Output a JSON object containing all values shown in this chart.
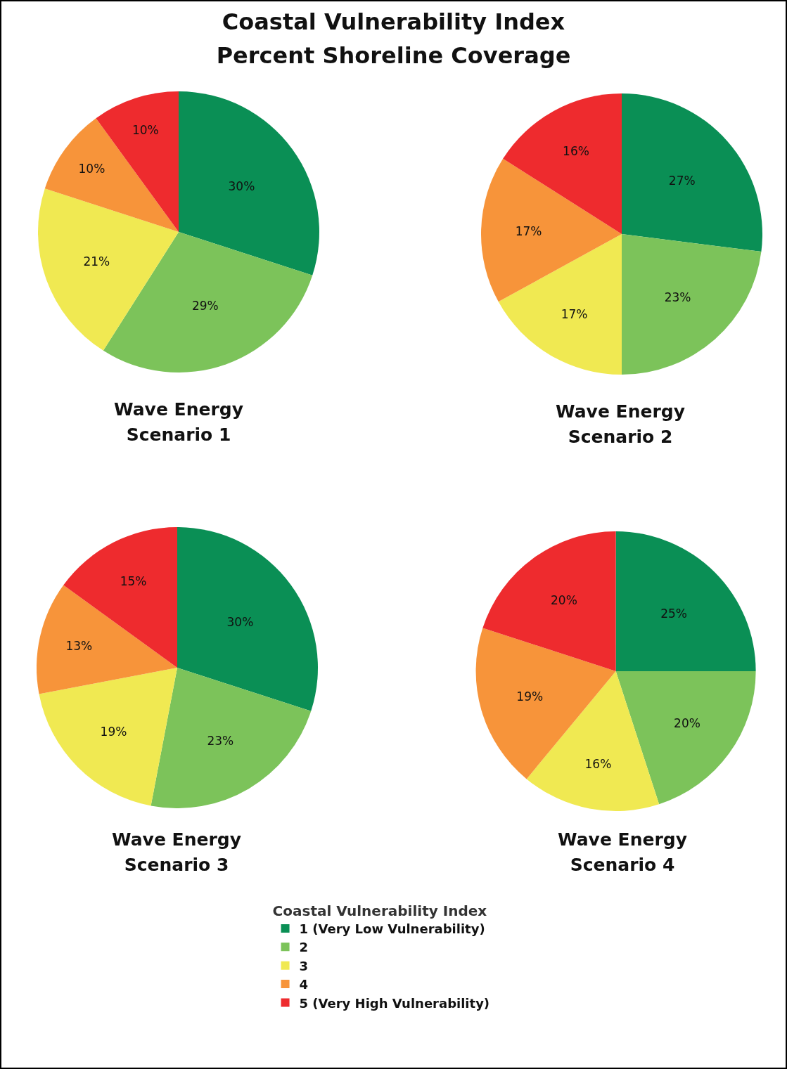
{
  "chart_data": [
    {
      "type": "pie",
      "title": "Coastal Vulnerability Index",
      "subtitle": "Percent Shoreline Coverage",
      "xlabel": "Wave Energy Scenario 1",
      "categories": [
        null,
        null,
        null,
        null,
        null
      ],
      "values": [
        30,
        29,
        21,
        10,
        10
      ],
      "colors": [
        "#0a8f55",
        "#7cc35a",
        "#f0e952",
        "#f7943a",
        "#ee2b2e"
      ],
      "value_labels": [
        "30%",
        "29%",
        "21%",
        "10%",
        "10%"
      ]
    },
    {
      "type": "pie",
      "xlabel": "Wave Energy Scenario 2",
      "categories": [
        null,
        null,
        null,
        null,
        null
      ],
      "values": [
        27,
        23,
        17,
        17,
        16
      ],
      "colors": [
        "#0a8f55",
        "#7cc35a",
        "#f0e952",
        "#f7943a",
        "#ee2b2e"
      ],
      "value_labels": [
        "27%",
        "23%",
        "17%",
        "17%",
        "16%"
      ]
    },
    {
      "type": "pie",
      "xlabel": "Wave Energy Scenario 3",
      "categories": [
        null,
        null,
        null,
        null,
        null
      ],
      "values": [
        30,
        23,
        19,
        13,
        15
      ],
      "colors": [
        "#0a8f55",
        "#7cc35a",
        "#f0e952",
        "#f7943a",
        "#ee2b2e"
      ],
      "value_labels": [
        "30%",
        "23%",
        "19%",
        "13%",
        "15%"
      ]
    },
    {
      "type": "pie",
      "xlabel": "Wave Energy Scenario 4",
      "categories": [
        "1 (Very Low Vulnerability)",
        "2",
        "3",
        "4",
        "5 (Very High Vulnerability)"
      ],
      "values": [
        25,
        20,
        16,
        19,
        20
      ],
      "colors": [
        "#0a8f55",
        "#7cc35a",
        "#f0e952",
        "#f7943a",
        "#ee2b2e"
      ],
      "value_labels": [
        "25%",
        "20%",
        "16%",
        "19%",
        "20%"
      ],
      "legend": "bottom",
      "legend_title": "Coastal Vulnerability Index"
    }
  ]
}
